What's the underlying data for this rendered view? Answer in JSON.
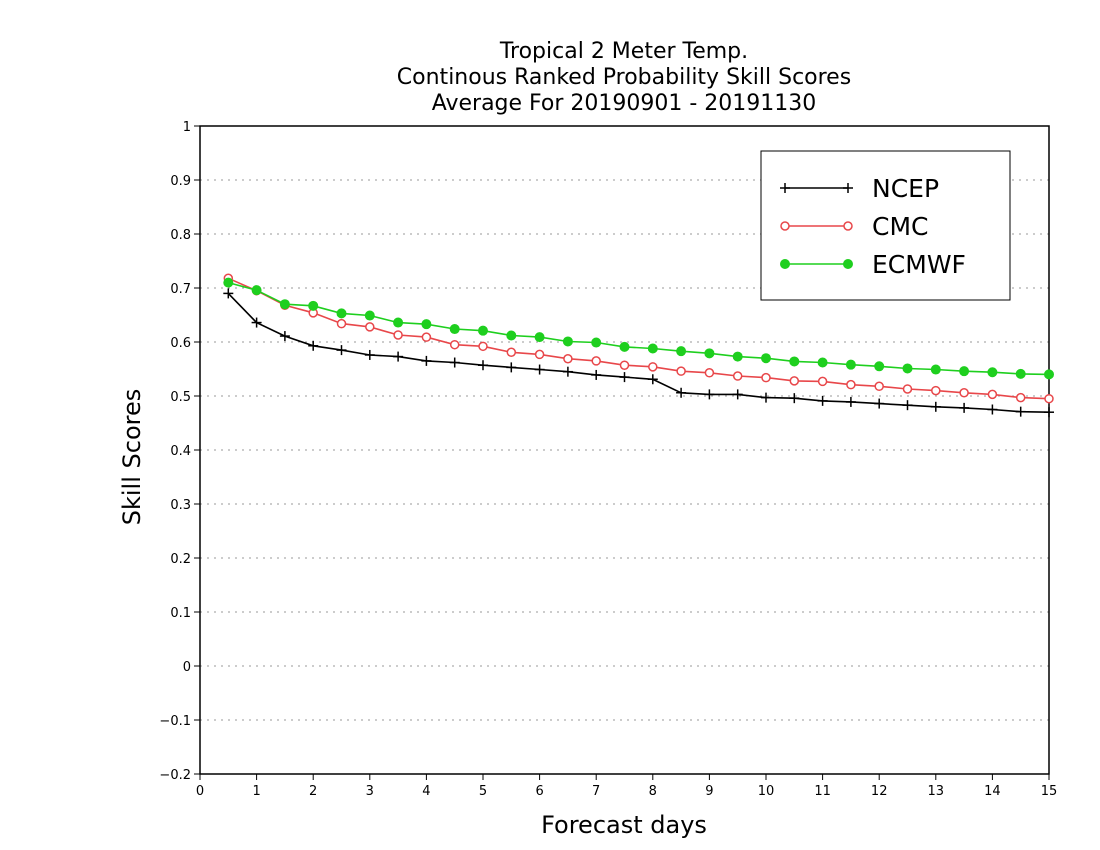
{
  "chart_data": {
    "type": "line",
    "title": [
      "Tropical 2 Meter Temp.",
      "Continous Ranked Probability Skill Scores",
      "Average For 20190901 - 20191130"
    ],
    "xlabel": "Forecast days",
    "ylabel": "Skill Scores",
    "xlim": [
      0,
      15
    ],
    "ylim": [
      -0.2,
      1
    ],
    "x_ticks": [
      0,
      1,
      2,
      3,
      4,
      5,
      6,
      7,
      8,
      9,
      10,
      11,
      12,
      13,
      14,
      15
    ],
    "x_tick_labels": [
      "0",
      "1",
      "2",
      "3",
      "4",
      "5",
      "6",
      "7",
      "8",
      "9",
      "10",
      "11",
      "12",
      "13",
      "14",
      "15"
    ],
    "y_ticks": [
      -0.2,
      -0.1,
      0,
      0.1,
      0.2,
      0.3,
      0.4,
      0.5,
      0.6,
      0.7,
      0.8,
      0.9,
      1
    ],
    "y_tick_labels": [
      "−0.2",
      "−0.1",
      "0",
      "0.1",
      "0.2",
      "0.3",
      "0.4",
      "0.5",
      "0.6",
      "0.7",
      "0.8",
      "0.9",
      "1"
    ],
    "grid": "horizontal dotted",
    "legend_position": "top-right",
    "x": [
      0.5,
      1,
      1.5,
      2,
      2.5,
      3,
      3.5,
      4,
      4.5,
      5,
      5.5,
      6,
      6.5,
      7,
      7.5,
      8,
      8.5,
      9,
      9.5,
      10,
      10.5,
      11,
      11.5,
      12,
      12.5,
      13,
      13.5,
      14,
      14.5,
      15
    ],
    "series": [
      {
        "name": "NCEP",
        "color": "#000000",
        "marker": "plus",
        "values": [
          0.69,
          0.636,
          0.611,
          0.593,
          0.585,
          0.576,
          0.573,
          0.565,
          0.562,
          0.557,
          0.553,
          0.549,
          0.545,
          0.539,
          0.535,
          0.531,
          0.506,
          0.503,
          0.503,
          0.497,
          0.496,
          0.491,
          0.489,
          0.486,
          0.483,
          0.48,
          0.478,
          0.475,
          0.471,
          0.47
        ]
      },
      {
        "name": "CMC",
        "color": "#e8474a",
        "marker": "open-circle",
        "values": [
          0.718,
          0.695,
          0.668,
          0.654,
          0.634,
          0.628,
          0.613,
          0.609,
          0.595,
          0.592,
          0.581,
          0.577,
          0.569,
          0.565,
          0.557,
          0.554,
          0.546,
          0.543,
          0.537,
          0.534,
          0.528,
          0.527,
          0.521,
          0.518,
          0.513,
          0.51,
          0.506,
          0.503,
          0.497,
          0.495
        ]
      },
      {
        "name": "ECMWF",
        "color": "#1ecf1e",
        "marker": "filled-circle",
        "values": [
          0.71,
          0.696,
          0.67,
          0.667,
          0.653,
          0.649,
          0.636,
          0.633,
          0.624,
          0.621,
          0.612,
          0.609,
          0.601,
          0.599,
          0.591,
          0.588,
          0.583,
          0.579,
          0.573,
          0.57,
          0.564,
          0.562,
          0.558,
          0.555,
          0.551,
          0.549,
          0.546,
          0.544,
          0.541,
          0.54
        ]
      }
    ]
  }
}
